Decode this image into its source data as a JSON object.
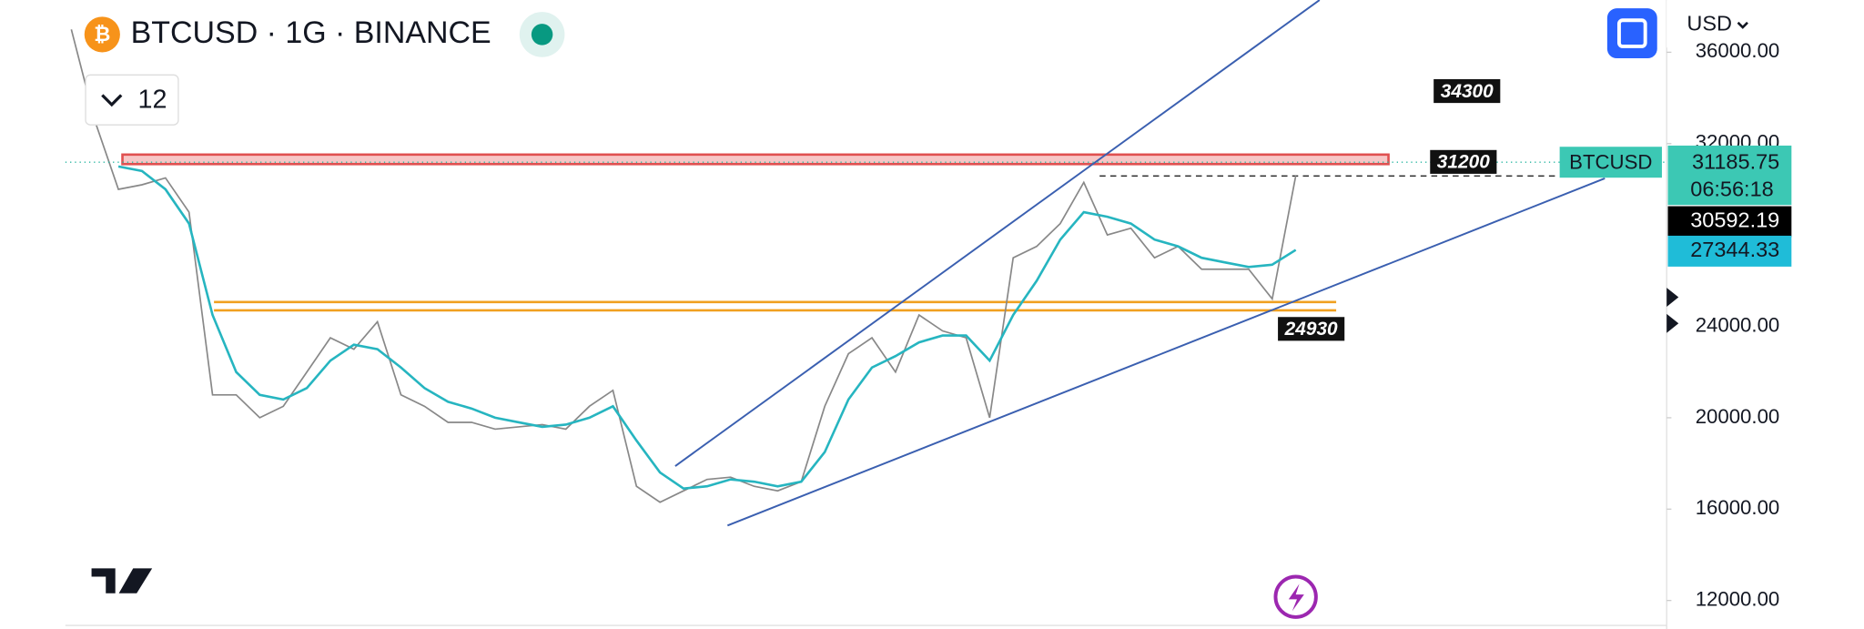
{
  "chart_data": {
    "type": "line",
    "title": "BTCUSD · 1G · BINANCE",
    "indicator_count": "12",
    "currency": "USD",
    "ylim": [
      10753,
      38286
    ],
    "yticks": [
      {
        "value": 12000,
        "label": "12000.00"
      },
      {
        "value": 16000,
        "label": "16000.00"
      },
      {
        "value": 20000,
        "label": "20000.00"
      },
      {
        "value": 24000,
        "label": "24000.00"
      },
      {
        "value": 32000,
        "label": "32000.00"
      },
      {
        "value": 36000,
        "label": "36000.00"
      }
    ],
    "series": [
      {
        "name": "BTCUSD",
        "color": "#888888",
        "values": [
          37000,
          33000,
          30000,
          30200,
          30500,
          29000,
          21000,
          21000,
          20000,
          20500,
          22000,
          23500,
          23000,
          24200,
          21000,
          20500,
          19800,
          19800,
          19500,
          19600,
          19700,
          19500,
          20500,
          21200,
          17000,
          16300,
          16800,
          17300,
          17400,
          17000,
          16800,
          17200,
          20500,
          22800,
          23500,
          22000,
          24500,
          23800,
          23500,
          20000,
          27000,
          27500,
          28500,
          30300,
          28000,
          28300,
          27000,
          27500,
          26500,
          26500,
          26500,
          25200,
          30592
        ]
      },
      {
        "name": "MA",
        "color": "#26b5c0",
        "values": [
          null,
          null,
          31000,
          30800,
          30000,
          28500,
          24500,
          22000,
          21000,
          20800,
          21300,
          22500,
          23200,
          23000,
          22200,
          21300,
          20700,
          20400,
          20000,
          19800,
          19600,
          19700,
          20000,
          20500,
          19000,
          17600,
          16900,
          17000,
          17300,
          17200,
          17000,
          17200,
          18500,
          20800,
          22200,
          22700,
          23300,
          23600,
          23600,
          22500,
          24500,
          26000,
          27800,
          29000,
          28800,
          28500,
          27800,
          27500,
          27000,
          26800,
          26600,
          26700,
          27344
        ]
      }
    ],
    "annotations": [
      34300,
      31200,
      24930
    ],
    "price_tags": {
      "symbol": "BTCUSD",
      "last": 31185.75,
      "countdown": "06:56:18",
      "close": 30592.19,
      "ma": 27344.33
    }
  }
}
